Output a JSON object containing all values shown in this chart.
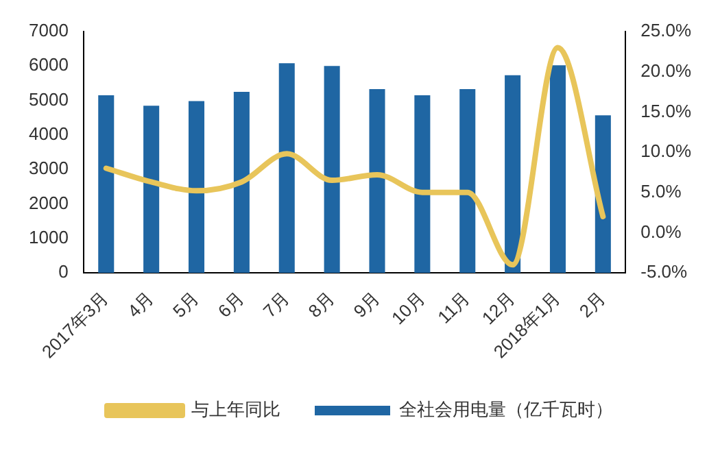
{
  "chart_data": {
    "type": "bar",
    "categories": [
      "2017年3月",
      "4月",
      "5月",
      "6月",
      "7月",
      "8月",
      "9月",
      "10月",
      "11月",
      "12月",
      "2018年1月",
      "2月"
    ],
    "series": [
      {
        "name": "全社会用电量（亿千瓦时）",
        "color": "#1f66a3",
        "values": [
          5150,
          4850,
          4980,
          5250,
          6080,
          6000,
          5330,
          5150,
          5330,
          5730,
          6020,
          4570
        ]
      },
      {
        "name": "与上年同比",
        "type": "line",
        "axis": "y2",
        "color": "#e8c55a",
        "values": [
          8.0,
          6.3,
          5.2,
          6.3,
          9.8,
          6.5,
          7.2,
          5.0,
          5.0,
          -4.0,
          23.0,
          2.0
        ]
      }
    ],
    "ylim": [
      0,
      7000
    ],
    "yticks": [
      0,
      1000,
      2000,
      3000,
      4000,
      5000,
      6000,
      7000
    ],
    "y2lim": [
      -5,
      25
    ],
    "y2ticks": [
      {
        "value": -5,
        "label": "-5.0%"
      },
      {
        "value": 0,
        "label": "0.0%"
      },
      {
        "value": 5,
        "label": "5.0%"
      },
      {
        "value": 10,
        "label": "10.0%"
      },
      {
        "value": 15,
        "label": "15.0%"
      },
      {
        "value": 20,
        "label": "20.0%"
      },
      {
        "value": 25,
        "label": "25.0%"
      }
    ],
    "grid": false,
    "legend": "bottom",
    "marker": "none"
  }
}
